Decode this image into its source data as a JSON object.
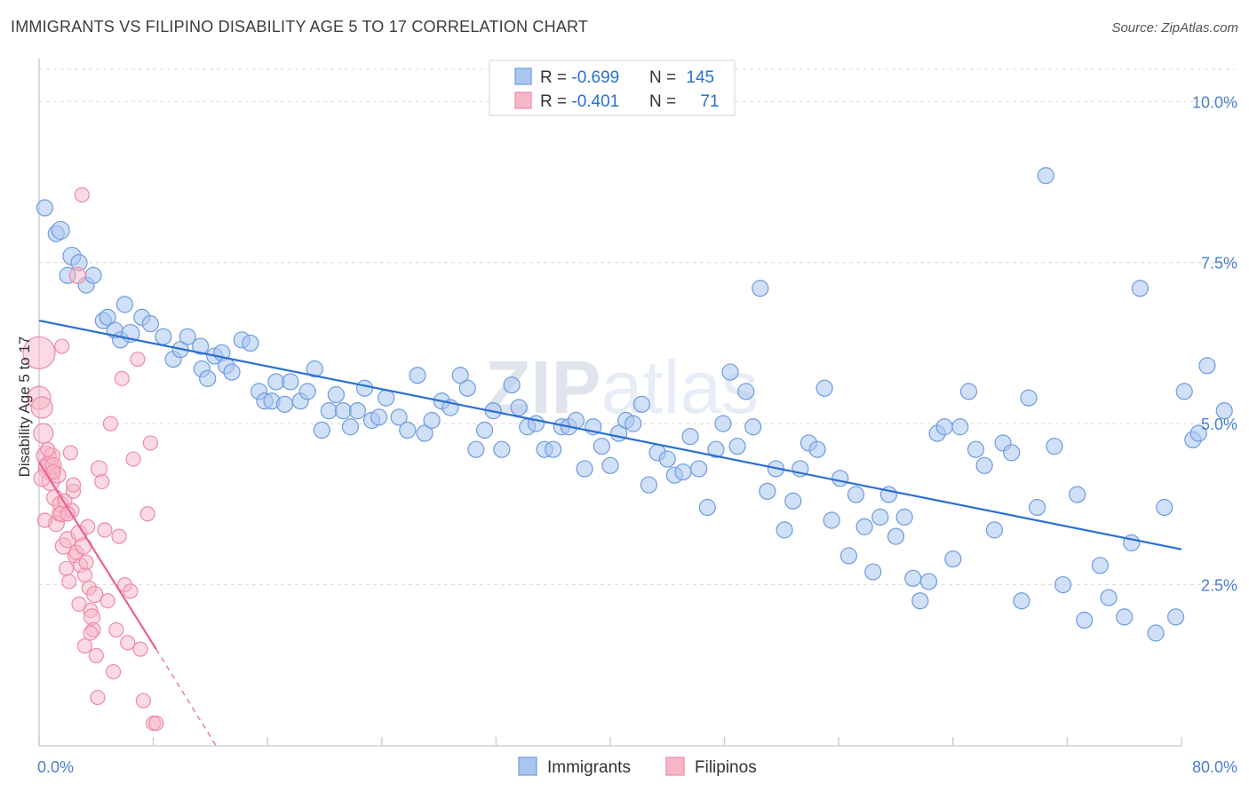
{
  "title": "IMMIGRANTS VS FILIPINO DISABILITY AGE 5 TO 17 CORRELATION CHART",
  "source": "Source: ZipAtlas.com",
  "watermark": "ZIPatlas",
  "colors": {
    "immigrants_fill": "#a9c6ee",
    "immigrants_stroke": "#6e9be0",
    "immigrants_line": "#2a6fd1",
    "filipinos_fill": "#f7b6c8",
    "filipinos_stroke": "#ee8aa8",
    "filipinos_line": "#e8628f",
    "tick_text": "#4a7fd0",
    "grid": "#d9d9d9"
  },
  "legend_top": {
    "rows": [
      {
        "r_label": "R = ",
        "r_value": "-0.699",
        "n_label": "N = ",
        "n_value": "145"
      },
      {
        "r_label": "R = ",
        "r_value": "-0.401",
        "n_label": "N = ",
        "n_value": "71"
      }
    ]
  },
  "legend_bottom": {
    "items": [
      "Immigrants",
      "Filipinos"
    ]
  },
  "chart_data": {
    "type": "scatter",
    "title": "IMMIGRANTS VS FILIPINO DISABILITY AGE 5 TO 17 CORRELATION CHART",
    "xlabel": "",
    "ylabel": "Disability Age 5 to 17",
    "xlim": [
      0,
      80
    ],
    "ylim": [
      0,
      10.5
    ],
    "x_tick_labels": [
      "0.0%",
      "80.0%"
    ],
    "y_ticks": [
      2.5,
      5.0,
      7.5,
      10.0
    ],
    "y_tick_labels": [
      "2.5%",
      "5.0%",
      "7.5%",
      "10.0%"
    ],
    "grid": true,
    "legend_position": "top-center",
    "series": [
      {
        "name": "Immigrants",
        "stats": {
          "R": -0.699,
          "N": 145
        },
        "trendline": {
          "x": [
            0,
            80
          ],
          "y": [
            6.6,
            3.05
          ]
        },
        "points": [
          [
            0.4,
            8.35,
            9
          ],
          [
            1.2,
            7.95,
            9
          ],
          [
            1.5,
            8.0,
            10
          ],
          [
            2.0,
            7.3,
            9
          ],
          [
            2.3,
            7.6,
            10
          ],
          [
            2.8,
            7.5,
            9
          ],
          [
            3.3,
            7.15,
            9
          ],
          [
            3.8,
            7.3,
            9
          ],
          [
            4.5,
            6.6,
            9
          ],
          [
            4.8,
            6.65,
            9
          ],
          [
            5.3,
            6.45,
            9
          ],
          [
            5.7,
            6.3,
            9
          ],
          [
            6.0,
            6.85,
            9
          ],
          [
            6.4,
            6.4,
            10
          ],
          [
            7.2,
            6.65,
            9
          ],
          [
            7.8,
            6.55,
            9
          ],
          [
            8.7,
            6.35,
            9
          ],
          [
            9.4,
            6.0,
            9
          ],
          [
            9.9,
            6.15,
            9
          ],
          [
            10.4,
            6.35,
            9
          ],
          [
            11.3,
            6.2,
            9
          ],
          [
            11.4,
            5.85,
            9
          ],
          [
            11.8,
            5.7,
            9
          ],
          [
            12.3,
            6.05,
            9
          ],
          [
            12.8,
            6.1,
            9
          ],
          [
            13.1,
            5.9,
            9
          ],
          [
            13.5,
            5.8,
            9
          ],
          [
            14.2,
            6.3,
            9
          ],
          [
            14.8,
            6.25,
            9
          ],
          [
            15.4,
            5.5,
            9
          ],
          [
            15.8,
            5.35,
            9
          ],
          [
            16.3,
            5.35,
            9
          ],
          [
            16.6,
            5.65,
            9
          ],
          [
            17.2,
            5.3,
            9
          ],
          [
            17.6,
            5.65,
            9
          ],
          [
            18.3,
            5.35,
            9
          ],
          [
            18.8,
            5.5,
            9
          ],
          [
            19.3,
            5.85,
            9
          ],
          [
            19.8,
            4.9,
            9
          ],
          [
            20.3,
            5.2,
            9
          ],
          [
            20.8,
            5.45,
            9
          ],
          [
            21.3,
            5.2,
            9
          ],
          [
            21.8,
            4.95,
            9
          ],
          [
            22.3,
            5.2,
            9
          ],
          [
            22.8,
            5.55,
            9
          ],
          [
            23.3,
            5.05,
            9
          ],
          [
            23.8,
            5.1,
            9
          ],
          [
            24.3,
            5.4,
            9
          ],
          [
            25.2,
            5.1,
            9
          ],
          [
            25.8,
            4.9,
            9
          ],
          [
            26.5,
            5.75,
            9
          ],
          [
            27.0,
            4.85,
            9
          ],
          [
            27.5,
            5.05,
            9
          ],
          [
            28.2,
            5.35,
            9
          ],
          [
            28.8,
            5.25,
            9
          ],
          [
            29.5,
            5.75,
            9
          ],
          [
            30.0,
            5.55,
            9
          ],
          [
            30.6,
            4.6,
            9
          ],
          [
            31.2,
            4.9,
            9
          ],
          [
            31.8,
            5.2,
            9
          ],
          [
            32.4,
            4.6,
            9
          ],
          [
            33.1,
            5.6,
            9
          ],
          [
            33.6,
            5.25,
            9
          ],
          [
            34.2,
            4.95,
            9
          ],
          [
            34.8,
            5.0,
            9
          ],
          [
            35.4,
            4.6,
            9
          ],
          [
            36.0,
            4.6,
            9
          ],
          [
            36.6,
            4.95,
            9
          ],
          [
            37.1,
            4.95,
            9
          ],
          [
            37.6,
            5.05,
            9
          ],
          [
            38.2,
            4.3,
            9
          ],
          [
            38.8,
            4.95,
            9
          ],
          [
            39.4,
            4.65,
            9
          ],
          [
            40.0,
            4.35,
            9
          ],
          [
            40.6,
            4.85,
            9
          ],
          [
            41.1,
            5.05,
            9
          ],
          [
            41.6,
            5.0,
            9
          ],
          [
            42.2,
            5.3,
            9
          ],
          [
            42.7,
            4.05,
            9
          ],
          [
            43.3,
            4.55,
            9
          ],
          [
            44.0,
            4.45,
            9
          ],
          [
            44.5,
            4.2,
            9
          ],
          [
            45.1,
            4.25,
            9
          ],
          [
            45.6,
            4.8,
            9
          ],
          [
            46.2,
            4.3,
            9
          ],
          [
            46.8,
            3.7,
            9
          ],
          [
            47.4,
            4.6,
            9
          ],
          [
            47.9,
            5.0,
            9
          ],
          [
            48.4,
            5.8,
            9
          ],
          [
            48.9,
            4.65,
            9
          ],
          [
            49.5,
            5.5,
            9
          ],
          [
            50.0,
            4.95,
            9
          ],
          [
            50.5,
            7.1,
            9
          ],
          [
            51.0,
            3.95,
            9
          ],
          [
            51.6,
            4.3,
            9
          ],
          [
            52.2,
            3.35,
            9
          ],
          [
            52.8,
            3.8,
            9
          ],
          [
            53.3,
            4.3,
            9
          ],
          [
            53.9,
            4.7,
            9
          ],
          [
            54.5,
            4.6,
            9
          ],
          [
            55.0,
            5.55,
            9
          ],
          [
            55.5,
            3.5,
            9
          ],
          [
            56.1,
            4.15,
            9
          ],
          [
            56.7,
            2.95,
            9
          ],
          [
            57.2,
            3.9,
            9
          ],
          [
            57.8,
            3.4,
            9
          ],
          [
            58.4,
            2.7,
            9
          ],
          [
            58.9,
            3.55,
            9
          ],
          [
            59.5,
            3.9,
            9
          ],
          [
            60.0,
            3.25,
            9
          ],
          [
            60.6,
            3.55,
            9
          ],
          [
            61.2,
            2.6,
            9
          ],
          [
            61.7,
            2.25,
            9
          ],
          [
            62.3,
            2.55,
            9
          ],
          [
            62.9,
            4.85,
            9
          ],
          [
            63.4,
            4.95,
            9
          ],
          [
            64.0,
            2.9,
            9
          ],
          [
            64.5,
            4.95,
            9
          ],
          [
            65.1,
            5.5,
            9
          ],
          [
            65.6,
            4.6,
            9
          ],
          [
            66.2,
            4.35,
            9
          ],
          [
            66.9,
            3.35,
            9
          ],
          [
            67.5,
            4.7,
            9
          ],
          [
            68.1,
            4.55,
            9
          ],
          [
            68.8,
            2.25,
            9
          ],
          [
            69.3,
            5.4,
            9
          ],
          [
            69.9,
            3.7,
            9
          ],
          [
            70.5,
            8.85,
            9
          ],
          [
            71.1,
            4.65,
            9
          ],
          [
            71.7,
            2.5,
            9
          ],
          [
            72.7,
            3.9,
            9
          ],
          [
            73.2,
            1.95,
            9
          ],
          [
            74.3,
            2.8,
            9
          ],
          [
            74.9,
            2.3,
            9
          ],
          [
            76.0,
            2.0,
            9
          ],
          [
            76.5,
            3.15,
            9
          ],
          [
            77.1,
            7.1,
            9
          ],
          [
            78.2,
            1.75,
            9
          ],
          [
            78.8,
            3.7,
            9
          ],
          [
            79.6,
            2.0,
            9
          ],
          [
            80.2,
            5.5,
            9
          ],
          [
            80.8,
            4.75,
            9
          ],
          [
            81.2,
            4.85,
            9
          ],
          [
            81.8,
            5.9,
            9
          ],
          [
            83.0,
            5.2,
            9
          ]
        ]
      },
      {
        "name": "Filipinos",
        "stats": {
          "R": -0.401,
          "N": 71
        },
        "trendline": {
          "x": [
            0,
            8.2,
            12.4
          ],
          "y": [
            4.4,
            1.5,
            0.0
          ]
        },
        "points": [
          [
            0.0,
            6.1,
            18
          ],
          [
            0.0,
            5.4,
            13
          ],
          [
            0.2,
            5.25,
            12
          ],
          [
            0.3,
            4.85,
            11
          ],
          [
            0.5,
            4.5,
            11
          ],
          [
            0.6,
            4.35,
            10
          ],
          [
            0.7,
            4.3,
            12
          ],
          [
            0.8,
            4.1,
            10
          ],
          [
            0.9,
            4.5,
            9
          ],
          [
            1.0,
            4.35,
            9
          ],
          [
            1.1,
            3.85,
            9
          ],
          [
            1.2,
            3.45,
            9
          ],
          [
            1.3,
            4.2,
            9
          ],
          [
            1.4,
            3.6,
            8
          ],
          [
            1.5,
            3.75,
            9
          ],
          [
            1.6,
            3.6,
            9
          ],
          [
            1.7,
            3.1,
            9
          ],
          [
            1.8,
            3.8,
            8
          ],
          [
            1.9,
            2.75,
            8
          ],
          [
            2.0,
            3.2,
            9
          ],
          [
            2.1,
            2.55,
            8
          ],
          [
            2.2,
            4.55,
            8
          ],
          [
            2.3,
            3.65,
            8
          ],
          [
            2.4,
            3.95,
            8
          ],
          [
            2.5,
            2.95,
            8
          ],
          [
            2.6,
            3.0,
            8
          ],
          [
            2.7,
            7.3,
            9
          ],
          [
            2.8,
            3.3,
            9
          ],
          [
            2.9,
            2.8,
            8
          ],
          [
            3.0,
            8.55,
            8
          ],
          [
            3.1,
            3.1,
            9
          ],
          [
            3.2,
            2.65,
            8
          ],
          [
            3.3,
            2.85,
            8
          ],
          [
            3.4,
            3.4,
            8
          ],
          [
            3.5,
            2.45,
            8
          ],
          [
            3.6,
            2.1,
            8
          ],
          [
            3.7,
            2.0,
            9
          ],
          [
            3.8,
            1.8,
            8
          ],
          [
            3.9,
            2.35,
            9
          ],
          [
            4.0,
            1.4,
            8
          ],
          [
            4.1,
            0.75,
            8
          ],
          [
            4.2,
            4.3,
            9
          ],
          [
            4.4,
            4.1,
            8
          ],
          [
            4.6,
            3.35,
            8
          ],
          [
            4.8,
            2.25,
            8
          ],
          [
            5.0,
            5.0,
            8
          ],
          [
            5.2,
            1.15,
            8
          ],
          [
            5.4,
            1.8,
            8
          ],
          [
            5.6,
            3.25,
            8
          ],
          [
            5.8,
            5.7,
            8
          ],
          [
            6.0,
            2.5,
            8
          ],
          [
            6.2,
            1.6,
            8
          ],
          [
            6.4,
            2.4,
            8
          ],
          [
            6.6,
            4.45,
            8
          ],
          [
            6.9,
            6.0,
            8
          ],
          [
            7.1,
            1.5,
            8
          ],
          [
            7.3,
            0.7,
            8
          ],
          [
            7.6,
            3.6,
            8
          ],
          [
            7.8,
            4.7,
            8
          ],
          [
            8.0,
            0.35,
            8
          ],
          [
            8.2,
            0.35,
            8
          ],
          [
            0.2,
            4.15,
            9
          ],
          [
            0.4,
            3.5,
            8
          ],
          [
            0.6,
            4.6,
            8
          ],
          [
            1.0,
            4.25,
            8
          ],
          [
            1.6,
            6.2,
            8
          ],
          [
            2.0,
            3.6,
            8
          ],
          [
            2.4,
            4.05,
            8
          ],
          [
            2.8,
            2.2,
            8
          ],
          [
            3.2,
            1.55,
            8
          ],
          [
            3.6,
            1.75,
            8
          ]
        ]
      }
    ]
  }
}
